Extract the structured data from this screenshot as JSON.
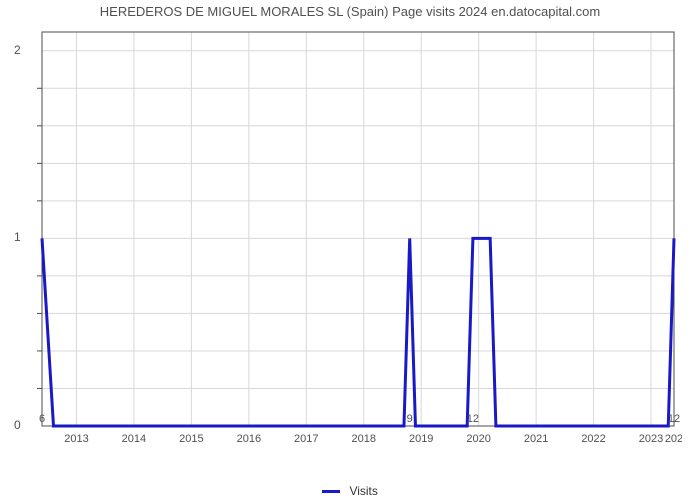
{
  "header": {
    "title": "HEREDEROS DE MIGUEL MORALES SL (Spain) Page visits 2024 en.datocapital.com"
  },
  "chart": {
    "type": "line",
    "x_axis": {
      "domain_min": 2012.4,
      "domain_max": 2023.4,
      "tick_start": 2013,
      "tick_end": 2023,
      "tick_step": 1,
      "label_fontsize": 11,
      "label_color": "#505050"
    },
    "y_axis": {
      "domain_min": 0,
      "domain_max": 2.1,
      "major_ticks": [
        0,
        1,
        2
      ],
      "minor_ticks_between": 4,
      "label_fontsize": 12,
      "label_color": "#505050"
    },
    "grid": {
      "color": "#d8d8d8",
      "width": 1,
      "y_minor": true
    },
    "border": {
      "color": "#4d4d4d",
      "width": 1
    },
    "plot_background": "#ffffff",
    "series": {
      "name": "Visits",
      "color": "#1919c5",
      "line_width": 3,
      "data": [
        {
          "x": 2012.4,
          "y": 1.0,
          "label": "6"
        },
        {
          "x": 2012.6,
          "y": 0.0
        },
        {
          "x": 2018.7,
          "y": 0.0
        },
        {
          "x": 2018.8,
          "y": 1.0,
          "label": "9"
        },
        {
          "x": 2018.9,
          "y": 0.0
        },
        {
          "x": 2019.8,
          "y": 0.0
        },
        {
          "x": 2019.9,
          "y": 1.0,
          "label": "12"
        },
        {
          "x": 2020.2,
          "y": 1.0
        },
        {
          "x": 2020.3,
          "y": 0.0
        },
        {
          "x": 2023.3,
          "y": 0.0
        },
        {
          "x": 2023.4,
          "y": 1.0,
          "label": "12"
        }
      ],
      "point_label_fontsize": 11,
      "point_label_color": "#505050",
      "point_label_dy": 4
    },
    "legend": {
      "label": "Visits",
      "swatch_color": "#1919c5",
      "text_color": "#333333",
      "fontsize": 12
    }
  }
}
